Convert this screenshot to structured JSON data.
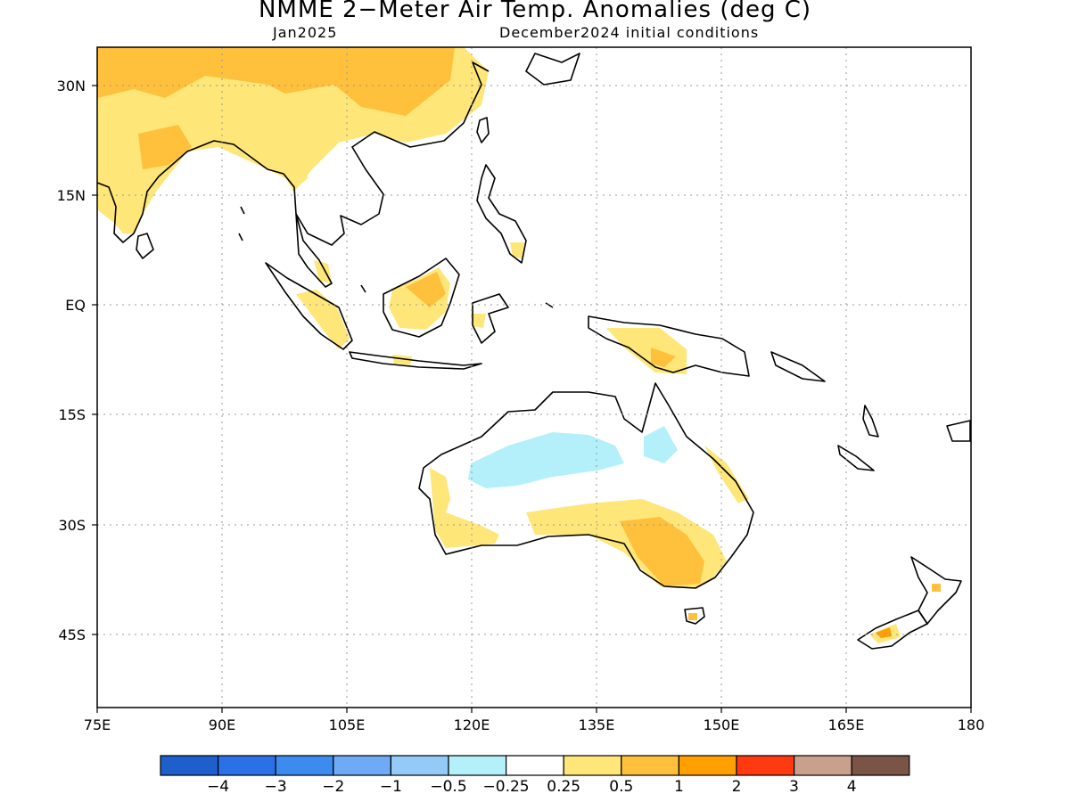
{
  "header": {
    "title": "NMME 2−Meter Air Temp. Anomalies (deg C)",
    "subtitle_left": "Jan2025",
    "subtitle_right": "December2024 initial conditions"
  },
  "map": {
    "lon_range": [
      75,
      180
    ],
    "lat_range": [
      -52,
      35
    ],
    "lat_ticks": [
      "30N",
      "15N",
      "EQ",
      "15S",
      "30S",
      "45S"
    ],
    "lon_ticks": [
      "75E",
      "90E",
      "105E",
      "120E",
      "135E",
      "150E",
      "165E",
      "180"
    ],
    "grid": "dotted"
  },
  "colorbar": {
    "colors": [
      "#1e5fcc",
      "#2b70e6",
      "#3c8cf0",
      "#6eaaf5",
      "#94caf8",
      "#b4f0fa",
      "#ffffff",
      "#ffe678",
      "#ffc03c",
      "#ffa000",
      "#ff3a10",
      "#c8a08c",
      "#7a5446"
    ],
    "labels": [
      "−4",
      "−3",
      "−2",
      "−1",
      "−0.5",
      "−0.25",
      "0.25",
      "0.5",
      "1",
      "2",
      "3",
      "4"
    ]
  },
  "anomaly_colors": {
    "weak_warm": "#ffe678",
    "moderate_warm": "#ffc03c",
    "strong_warm": "#ffa000",
    "weak_cool": "#b4f0fa"
  }
}
